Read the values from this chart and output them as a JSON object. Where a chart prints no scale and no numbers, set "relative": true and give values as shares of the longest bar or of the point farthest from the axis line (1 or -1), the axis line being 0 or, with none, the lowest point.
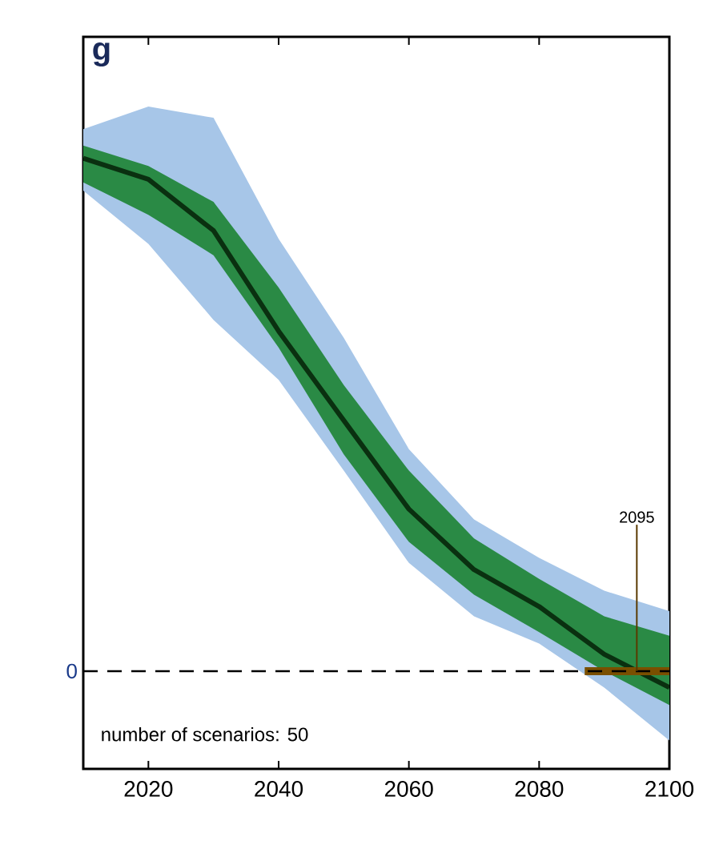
{
  "chart_data": {
    "type": "line",
    "title": "g",
    "relative": true,
    "x": [
      2010,
      2020,
      2030,
      2040,
      2050,
      2060,
      2070,
      2080,
      2090,
      2100
    ],
    "xlim": [
      2010,
      2100
    ],
    "xticks": [
      2020,
      2040,
      2060,
      2080,
      2100
    ],
    "series": [
      {
        "color": "#a7c6e8",
        "values": [
          null,
          null,
          null,
          null,
          null,
          null,
          null,
          null,
          null,
          null
        ],
        "upper": [
          1.057,
          1.101,
          1.079,
          0.843,
          0.65,
          0.433,
          0.296,
          0.221,
          0.157,
          0.117
        ],
        "lower": [
          0.937,
          0.833,
          0.685,
          0.568,
          0.391,
          0.211,
          0.107,
          0.054,
          -0.032,
          -0.135
        ]
      },
      {
        "color": "#2a8a45",
        "values": [
          null,
          null,
          null,
          null,
          null,
          null,
          null,
          null,
          null,
          null
        ],
        "upper": [
          1.025,
          0.985,
          0.915,
          0.748,
          0.558,
          0.391,
          0.259,
          0.18,
          0.107,
          0.069
        ],
        "lower": [
          0.953,
          0.89,
          0.811,
          0.631,
          0.423,
          0.252,
          0.149,
          0.076,
          0,
          -0.066
        ]
      },
      {
        "color": "#0a3010",
        "values": [
          1,
          0.959,
          0.859,
          0.663,
          0.489,
          0.316,
          0.198,
          0.126,
          0.033,
          -0.032
        ]
      },
      {
        "color": "#7a4f00",
        "x": [
          2087,
          2100
        ],
        "values": [
          0,
          0
        ]
      }
    ],
    "ref_lines": [
      {
        "axis": "y",
        "value": 0,
        "label": "0",
        "line_style": "dashed"
      }
    ],
    "annotations": [
      {
        "text": "2095",
        "x": 2095,
        "y": 0
      },
      "number of scenarios: 50"
    ],
    "grid": false
  }
}
